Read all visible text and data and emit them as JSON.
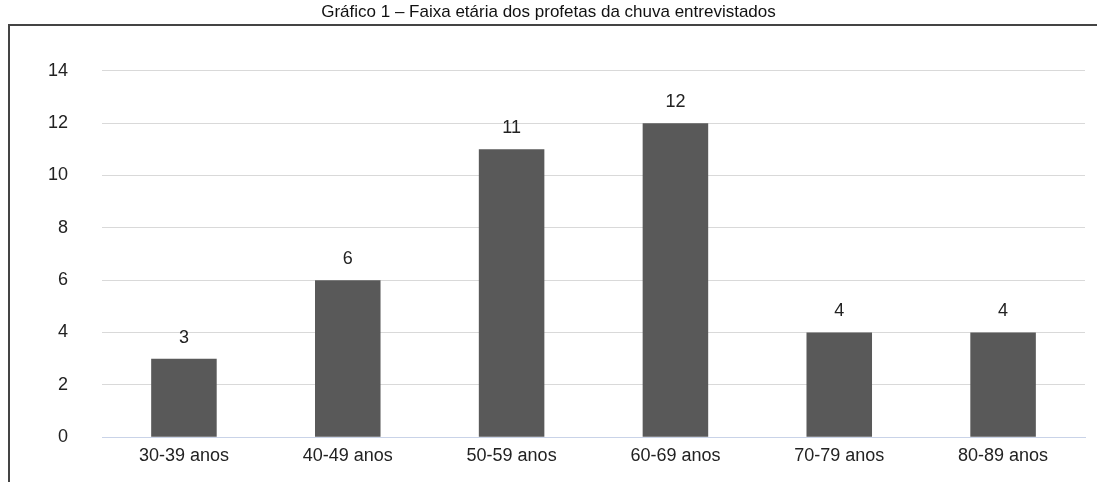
{
  "chart_data": {
    "type": "bar",
    "title": "Gráfico 1 – Faixa etária dos profetas da chuva entrevistados",
    "categories": [
      "30-39 anos",
      "40-49 anos",
      "50-59 anos",
      "60-69 anos",
      "70-79 anos",
      "80-89 anos"
    ],
    "values": [
      3,
      6,
      11,
      12,
      4,
      4
    ],
    "color": "#595959",
    "ylim": [
      0,
      14
    ],
    "yticks": [
      0,
      2,
      4,
      6,
      8,
      10,
      12,
      14
    ],
    "grid": "y",
    "data_labels": true
  }
}
